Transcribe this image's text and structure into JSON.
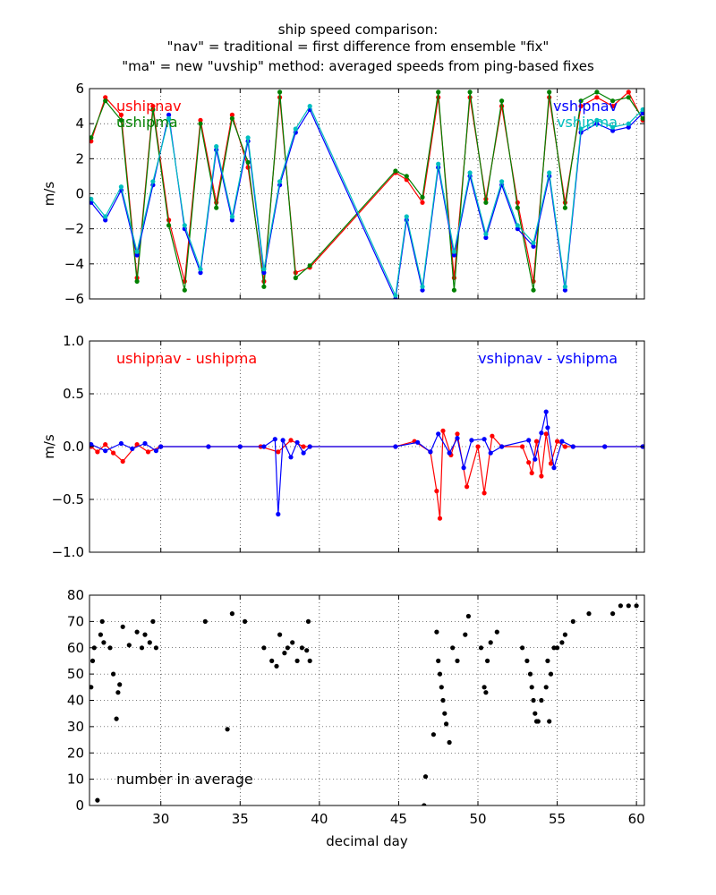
{
  "figure": {
    "title_lines": [
      "ship speed comparison:",
      "\"nav\" = traditional = first difference from ensemble \"fix\"",
      "\"ma\" = new \"uvship\" method: averaged speeds from ping-based fixes"
    ],
    "xlabel": "decimal day"
  },
  "chart_data": [
    {
      "type": "line",
      "ylabel": "m/s",
      "xlim": [
        25.5,
        60.5
      ],
      "ylim": [
        -6,
        6
      ],
      "xticks": [
        30,
        35,
        40,
        45,
        50,
        55,
        60
      ],
      "yticks": [
        -6,
        -4,
        -2,
        0,
        2,
        4,
        6
      ],
      "grid": true,
      "annotations": [
        {
          "text": "ushipnav",
          "color": "#ff0000"
        },
        {
          "text": "ushipma",
          "color": "#008000"
        },
        {
          "text": "vshipnav",
          "color": "#0000ff"
        },
        {
          "text": "vshipma",
          "color": "#00bfbf"
        }
      ],
      "series": [
        {
          "name": "ushipnav",
          "color": "#ff0000",
          "x": [
            25.6,
            26.5,
            27.5,
            28.5,
            29.5,
            30.5,
            31.5,
            32.5,
            33.5,
            34.5,
            35.5,
            36.5,
            37.5,
            38.5,
            39.4,
            44.8,
            45.5,
            46.5,
            47.5,
            48.5,
            49.5,
            50.5,
            51.5,
            52.5,
            53.5,
            54.5,
            55.5,
            56.5,
            57.5,
            58.5,
            59.5,
            60.4
          ],
          "y": [
            3.0,
            5.5,
            4.5,
            -4.8,
            5.0,
            -1.5,
            -5.0,
            4.2,
            -0.5,
            4.5,
            1.5,
            -5.0,
            5.5,
            -4.5,
            -4.2,
            1.2,
            0.8,
            -0.5,
            5.5,
            -4.8,
            5.5,
            -0.3,
            5.0,
            -0.5,
            -5.0,
            5.5,
            -0.5,
            5.0,
            5.5,
            5.0,
            5.8,
            4.2
          ]
        },
        {
          "name": "ushipma",
          "color": "#008000",
          "x": [
            25.6,
            26.5,
            27.5,
            28.5,
            29.5,
            30.5,
            31.5,
            32.5,
            33.5,
            34.5,
            35.5,
            36.5,
            37.5,
            38.5,
            39.4,
            44.8,
            45.5,
            46.5,
            47.5,
            48.5,
            49.5,
            50.5,
            51.5,
            52.5,
            53.5,
            54.5,
            55.5,
            56.5,
            57.5,
            58.5,
            59.5,
            60.4
          ],
          "y": [
            3.2,
            5.3,
            4.2,
            -5.0,
            4.8,
            -1.8,
            -5.5,
            4.0,
            -0.8,
            4.3,
            1.8,
            -5.3,
            5.8,
            -4.8,
            -4.1,
            1.3,
            1.0,
            -0.2,
            5.8,
            -5.5,
            5.8,
            -0.5,
            5.3,
            -0.8,
            -5.5,
            5.8,
            -0.8,
            5.3,
            5.8,
            5.3,
            5.5,
            4.3
          ]
        },
        {
          "name": "vshipnav",
          "color": "#0000ff",
          "x": [
            25.6,
            26.5,
            27.5,
            28.5,
            29.5,
            30.5,
            31.5,
            32.5,
            33.5,
            34.5,
            35.5,
            36.5,
            37.5,
            38.5,
            39.4,
            44.8,
            45.5,
            46.5,
            47.5,
            48.5,
            49.5,
            50.5,
            51.5,
            52.5,
            53.5,
            54.5,
            55.5,
            56.5,
            57.5,
            58.5,
            59.5,
            60.4
          ],
          "y": [
            -0.5,
            -1.5,
            0.2,
            -3.5,
            0.5,
            4.5,
            -2.0,
            -4.5,
            2.5,
            -1.5,
            3.0,
            -4.5,
            0.5,
            3.5,
            4.8,
            -6.0,
            -1.5,
            -5.5,
            1.5,
            -3.5,
            1.0,
            -2.5,
            0.5,
            -2.0,
            -3.0,
            1.0,
            -5.5,
            3.5,
            4.0,
            3.6,
            3.8,
            4.6
          ]
        },
        {
          "name": "vshipma",
          "color": "#00bfbf",
          "x": [
            25.6,
            26.5,
            27.5,
            28.5,
            29.5,
            30.5,
            31.5,
            32.5,
            33.5,
            34.5,
            35.5,
            36.5,
            37.5,
            38.5,
            39.4,
            44.8,
            45.5,
            46.5,
            47.5,
            48.5,
            49.5,
            50.5,
            51.5,
            52.5,
            53.5,
            54.5,
            55.5,
            56.5,
            57.5,
            58.5,
            59.5,
            60.4
          ],
          "y": [
            -0.3,
            -1.3,
            0.4,
            -3.3,
            0.7,
            4.3,
            -1.8,
            -4.3,
            2.7,
            -1.3,
            3.2,
            -4.3,
            0.7,
            3.7,
            5.0,
            -5.8,
            -1.3,
            -5.3,
            1.7,
            -3.3,
            1.2,
            -2.3,
            0.7,
            -1.8,
            -2.8,
            1.2,
            -5.3,
            3.7,
            4.2,
            3.8,
            4.0,
            4.8
          ]
        }
      ]
    },
    {
      "type": "line",
      "ylabel": "m/s",
      "xlim": [
        25.5,
        60.5
      ],
      "ylim": [
        -1.0,
        1.0
      ],
      "xticks": [
        30,
        35,
        40,
        45,
        50,
        55,
        60
      ],
      "yticks": [
        -1.0,
        -0.5,
        0.0,
        0.5,
        1.0
      ],
      "grid": true,
      "annotations": [
        {
          "text": "ushipnav - ushipma",
          "color": "#ff0000"
        },
        {
          "text": "vshipnav - vshipma",
          "color": "#0000ff"
        }
      ],
      "series": [
        {
          "name": "ushipnav - ushipma",
          "color": "#ff0000",
          "x": [
            25.6,
            26.0,
            26.5,
            27.0,
            27.6,
            28.5,
            29.2,
            30.0,
            33.0,
            35.0,
            36.3,
            37.4,
            38.2,
            39.0,
            39.4,
            44.8,
            46.0,
            47.0,
            47.4,
            47.6,
            47.8,
            48.3,
            48.7,
            49.3,
            50.0,
            50.4,
            50.9,
            51.5,
            52.8,
            53.2,
            53.4,
            53.7,
            54.0,
            54.3,
            54.6,
            55.0,
            55.5,
            56.0,
            58.0,
            60.4
          ],
          "y": [
            0.0,
            -0.05,
            0.02,
            -0.06,
            -0.14,
            0.02,
            -0.05,
            0.0,
            0.0,
            0.0,
            0.0,
            -0.05,
            0.06,
            0.0,
            0.0,
            0.0,
            0.05,
            -0.05,
            -0.42,
            -0.68,
            0.15,
            -0.08,
            0.12,
            -0.38,
            0.0,
            -0.44,
            0.1,
            0.0,
            0.0,
            -0.15,
            -0.25,
            0.05,
            -0.28,
            0.12,
            -0.16,
            0.05,
            0.0,
            0.0,
            0.0,
            0.0
          ]
        },
        {
          "name": "vshipnav - vshipma",
          "color": "#0000ff",
          "x": [
            25.6,
            26.5,
            27.5,
            28.2,
            29.0,
            29.7,
            30.0,
            33.0,
            35.0,
            36.5,
            37.2,
            37.4,
            37.7,
            38.2,
            38.6,
            39.0,
            39.4,
            44.8,
            46.2,
            47.0,
            47.5,
            48.2,
            48.7,
            49.1,
            49.6,
            50.4,
            50.8,
            51.5,
            53.2,
            53.6,
            54.0,
            54.3,
            54.4,
            54.8,
            55.3,
            56.0,
            58.0,
            60.4
          ],
          "y": [
            0.02,
            -0.04,
            0.03,
            -0.02,
            0.03,
            -0.04,
            0.0,
            0.0,
            0.0,
            0.0,
            0.07,
            -0.64,
            0.06,
            -0.1,
            0.04,
            -0.06,
            0.0,
            0.0,
            0.04,
            -0.05,
            0.12,
            -0.06,
            0.08,
            -0.2,
            0.06,
            0.07,
            -0.06,
            0.0,
            0.06,
            -0.12,
            0.13,
            0.33,
            0.18,
            -0.2,
            0.05,
            0.0,
            0.0,
            0.0
          ]
        }
      ]
    },
    {
      "type": "scatter",
      "ylabel": "",
      "xlim": [
        25.5,
        60.5
      ],
      "ylim": [
        0,
        80
      ],
      "xticks": [
        30,
        35,
        40,
        45,
        50,
        55,
        60
      ],
      "yticks": [
        0,
        10,
        20,
        30,
        40,
        50,
        60,
        70,
        80
      ],
      "grid": true,
      "annotations": [
        {
          "text": "number in average",
          "color": "#000000"
        }
      ],
      "series": [
        {
          "name": "number in average",
          "color": "#000000",
          "x": [
            25.6,
            25.7,
            25.8,
            26.0,
            26.2,
            26.3,
            26.4,
            26.8,
            27.0,
            27.2,
            27.3,
            27.4,
            27.6,
            28.0,
            28.5,
            28.8,
            29.0,
            29.3,
            29.5,
            29.7,
            32.8,
            34.2,
            34.5,
            35.3,
            36.5,
            37.0,
            37.3,
            37.5,
            37.8,
            38.0,
            38.3,
            38.6,
            38.9,
            39.2,
            39.4,
            39.3,
            46.6,
            46.7,
            47.2,
            47.4,
            47.5,
            47.6,
            47.7,
            47.8,
            47.9,
            48.0,
            48.2,
            48.4,
            48.7,
            49.2,
            49.4,
            50.2,
            50.4,
            50.5,
            50.6,
            50.8,
            51.2,
            52.8,
            53.1,
            53.3,
            53.4,
            53.5,
            53.6,
            53.7,
            53.8,
            54.0,
            54.3,
            54.4,
            54.5,
            54.6,
            54.8,
            55.0,
            55.3,
            55.5,
            56.0,
            57.0,
            58.5,
            59.0,
            59.5,
            60.0
          ],
          "y": [
            45,
            55,
            60,
            2,
            65,
            70,
            62,
            60,
            50,
            33,
            43,
            46,
            68,
            61,
            66,
            60,
            65,
            62,
            70,
            60,
            70,
            29,
            73,
            70,
            60,
            55,
            53,
            65,
            58,
            60,
            62,
            55,
            60,
            59,
            55,
            70,
            0,
            11,
            27,
            66,
            55,
            50,
            45,
            40,
            35,
            31,
            24,
            60,
            55,
            65,
            72,
            60,
            45,
            43,
            55,
            62,
            66,
            60,
            55,
            50,
            45,
            40,
            35,
            32,
            32,
            40,
            45,
            55,
            32,
            50,
            60,
            60,
            62,
            65,
            70,
            73,
            73,
            76,
            76,
            76
          ]
        }
      ]
    }
  ]
}
